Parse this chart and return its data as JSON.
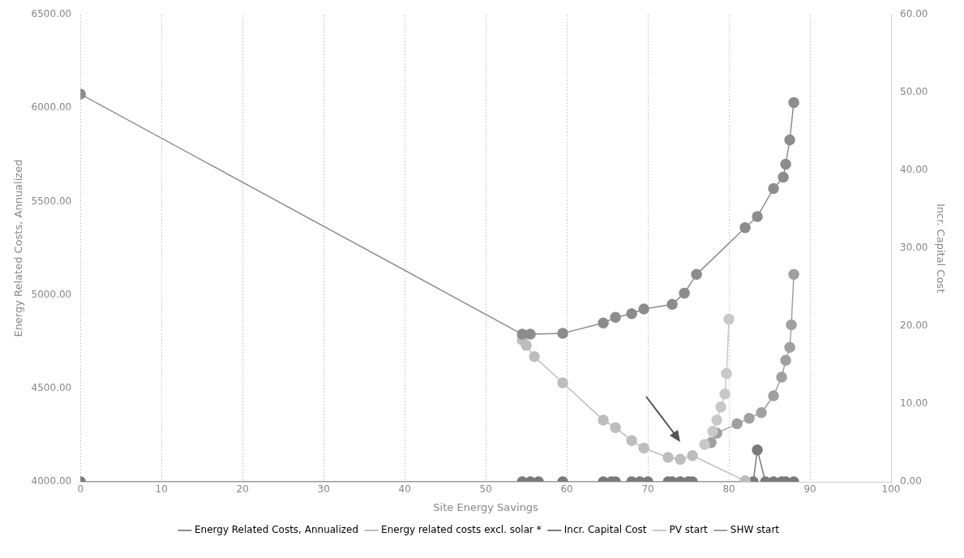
{
  "chart_data": {
    "type": "line",
    "xlabel": "Site Energy Savings",
    "ylabel": "Energy Related Costs, Annualized",
    "y2label": "Incr. Capital Cost",
    "xlim": [
      0,
      100
    ],
    "xticks": [
      0,
      10,
      20,
      30,
      40,
      50,
      60,
      70,
      80,
      90,
      100
    ],
    "ylim": [
      4000,
      6500
    ],
    "yticks": [
      {
        "value": 4000,
        "label": "4000.00"
      },
      {
        "value": 4500,
        "label": "4500.00"
      },
      {
        "value": 5000,
        "label": "5000.00"
      },
      {
        "value": 5500,
        "label": "5500.00"
      },
      {
        "value": 6000,
        "label": "6000.00"
      },
      {
        "value": 6500,
        "label": "6500.00"
      }
    ],
    "y2lim": [
      0,
      60
    ],
    "y2ticks": [
      {
        "value": 0,
        "label": "0.00"
      },
      {
        "value": 10,
        "label": "10.00"
      },
      {
        "value": 20,
        "label": "20.00"
      },
      {
        "value": 30,
        "label": "30.00"
      },
      {
        "value": 40,
        "label": "40.00"
      },
      {
        "value": 50,
        "label": "50.00"
      },
      {
        "value": 60,
        "label": "60.00"
      }
    ],
    "grid": "x",
    "legend": "bottom",
    "marker": "circle",
    "series": [
      {
        "name": "Energy Related Costs, Annualized",
        "color": "#8c8c8c",
        "x": [
          0,
          54.5,
          55.5,
          59.5,
          64.5,
          66,
          68,
          69.5,
          73,
          74.5,
          76,
          82,
          83.5,
          85.5,
          86.7,
          87,
          87.5,
          88
        ],
        "values": [
          6075,
          4790,
          4790,
          4795,
          4850,
          4880,
          4900,
          4925,
          4950,
          5010,
          5110,
          5360,
          5420,
          5570,
          5630,
          5700,
          5830,
          6030
        ]
      },
      {
        "name": "Energy related costs excl. solar *",
        "color": "#bdbdbd",
        "x": [
          54.5,
          55,
          56,
          59.5,
          64.5,
          66,
          68,
          69.5,
          72.5,
          74,
          75.5,
          82
        ],
        "values": [
          4760,
          4730,
          4670,
          4530,
          4330,
          4290,
          4220,
          4180,
          4130,
          4120,
          4140,
          4005
        ]
      },
      {
        "name": "Incr. Capital Cost",
        "color": "#7a7a7a",
        "axis": "y2",
        "x": [
          0,
          54.5,
          55.5,
          56.5,
          59.5,
          64.5,
          65.5,
          66,
          68,
          69,
          70,
          72.5,
          73,
          74,
          75,
          75.5,
          82,
          83,
          83.5,
          84.5,
          85.5,
          86.5,
          87,
          88
        ],
        "values": [
          0,
          0,
          0,
          0,
          0,
          0,
          0,
          0,
          0,
          0,
          0,
          0,
          0,
          0,
          0,
          0,
          0,
          0,
          4.1,
          0,
          0,
          0,
          0,
          0
        ]
      },
      {
        "name": "PV start",
        "color": "#c8c8c8",
        "x": [
          77,
          78,
          78.5,
          79,
          79.5,
          79.7,
          80
        ],
        "values": [
          4200,
          4270,
          4330,
          4400,
          4470,
          4580,
          4870
        ]
      },
      {
        "name": "SHW start",
        "color": "#a0a0a0",
        "x": [
          77.8,
          78.5,
          81,
          82.5,
          84,
          85.5,
          86.5,
          87,
          87.5,
          87.7,
          88
        ],
        "values": [
          4210,
          4260,
          4310,
          4340,
          4370,
          4460,
          4560,
          4650,
          4720,
          4840,
          5110
        ]
      }
    ]
  }
}
